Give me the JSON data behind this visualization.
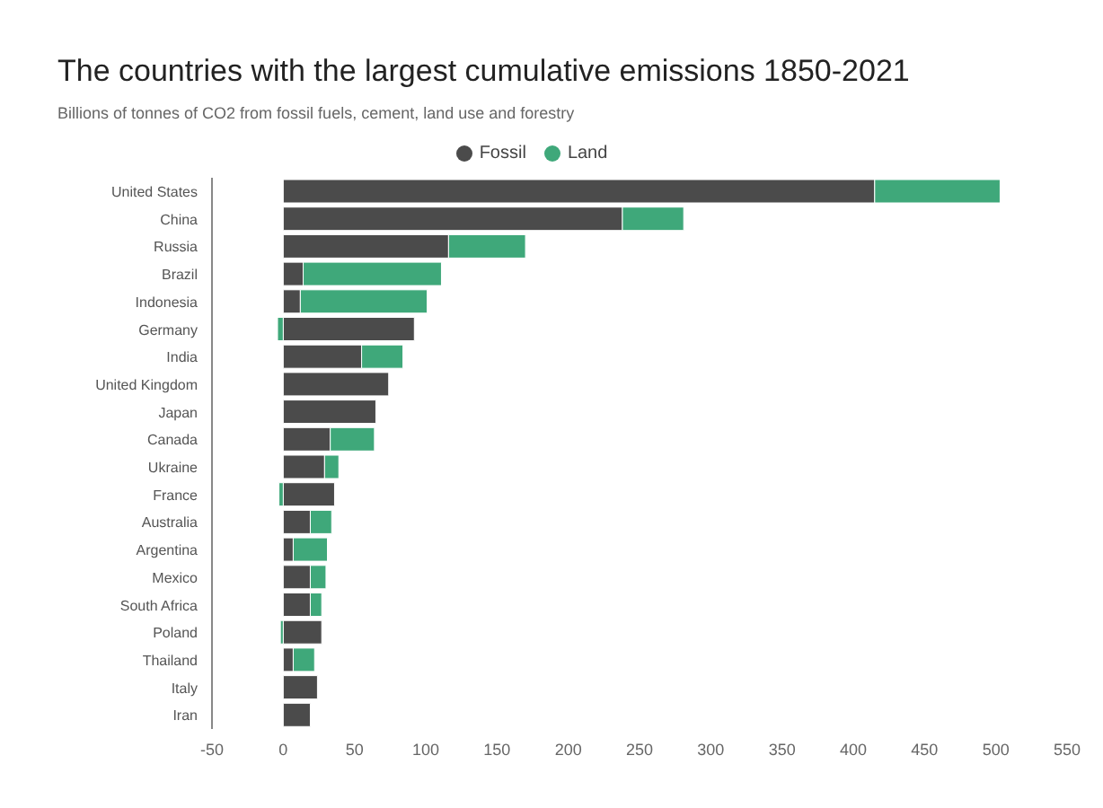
{
  "chart_data": {
    "type": "bar",
    "orientation": "horizontal",
    "stacked": true,
    "title": "The countries with the largest cumulative emissions 1850-2021",
    "subtitle": "Billions of tonnes of CO2 from fossil fuels, cement, land use and forestry",
    "categories": [
      "United States",
      "China",
      "Russia",
      "Brazil",
      "Indonesia",
      "Germany",
      "India",
      "United Kingdom",
      "Japan",
      "Canada",
      "Ukraine",
      "France",
      "Australia",
      "Argentina",
      "Mexico",
      "South Africa",
      "Poland",
      "Thailand",
      "Italy",
      "Iran"
    ],
    "series": [
      {
        "name": "Fossil",
        "color": "#4b4b4b",
        "values": [
          415,
          238,
          116,
          14,
          12,
          92,
          55,
          74,
          65,
          33,
          29,
          36,
          19,
          7,
          19,
          19,
          27,
          7,
          24,
          19
        ]
      },
      {
        "name": "Land",
        "color": "#3fa87a",
        "values": [
          88,
          43,
          54,
          97,
          89,
          -4,
          29,
          null,
          null,
          31,
          10,
          -3,
          15,
          24,
          11,
          8,
          -2,
          15,
          null,
          null
        ]
      }
    ],
    "xlim": [
      -50,
      550
    ],
    "xticks": [
      -50,
      0,
      50,
      100,
      150,
      200,
      250,
      300,
      350,
      400,
      450,
      500,
      550
    ],
    "legend": "top"
  }
}
